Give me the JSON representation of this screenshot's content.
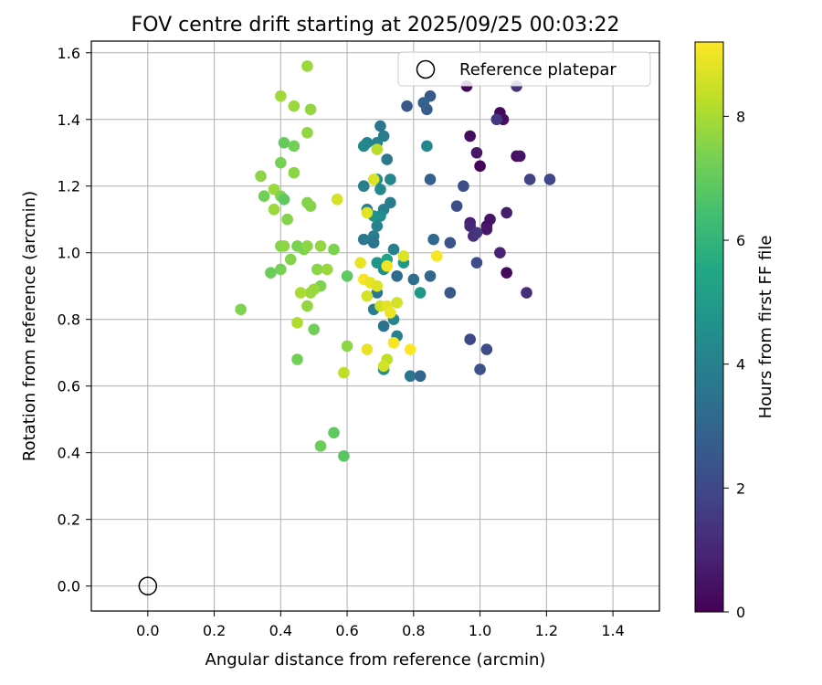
{
  "chart_data": {
    "type": "scatter",
    "title": "FOV centre drift starting at 2025/09/25 00:03:22",
    "xlabel": "Angular distance from reference (arcmin)",
    "ylabel": "Rotation from reference (arcmin)",
    "xlim": [
      -0.17,
      1.54
    ],
    "ylim": [
      -0.075,
      1.635
    ],
    "xticks": [
      "0.0",
      "0.2",
      "0.4",
      "0.6",
      "0.8",
      "1.0",
      "1.2",
      "1.4"
    ],
    "xtick_values": [
      0.0,
      0.2,
      0.4,
      0.6,
      0.8,
      1.0,
      1.2,
      1.4
    ],
    "yticks": [
      "0.0",
      "0.2",
      "0.4",
      "0.6",
      "0.8",
      "1.0",
      "1.2",
      "1.4",
      "1.6"
    ],
    "ytick_values": [
      0.0,
      0.2,
      0.4,
      0.6,
      0.8,
      1.0,
      1.2,
      1.4,
      1.6
    ],
    "grid": true,
    "legend": {
      "position": "top-right",
      "label": "Reference platepar"
    },
    "reference_point": {
      "x": 0.0,
      "y": 0.0
    },
    "colorbar": {
      "label": "Hours from first FF file",
      "min": 0,
      "max": 9.2,
      "ticks": [
        "0",
        "2",
        "4",
        "6",
        "8"
      ],
      "tick_values": [
        0,
        2,
        4,
        6,
        8
      ],
      "colormap": "viridis"
    },
    "points": [
      [
        0.96,
        1.5,
        0.1
      ],
      [
        1.11,
        1.5,
        1.3
      ],
      [
        1.06,
        1.42,
        0.2
      ],
      [
        1.07,
        1.4,
        0.4
      ],
      [
        1.05,
        1.4,
        1.5
      ],
      [
        0.97,
        1.35,
        0.3
      ],
      [
        0.99,
        1.3,
        0.6
      ],
      [
        1.11,
        1.29,
        0.3
      ],
      [
        1.12,
        1.29,
        0.5
      ],
      [
        1.0,
        1.26,
        0.1
      ],
      [
        1.15,
        1.22,
        1.8
      ],
      [
        1.21,
        1.22,
        1.9
      ],
      [
        1.08,
        1.12,
        0.7
      ],
      [
        1.03,
        1.1,
        0.5
      ],
      [
        1.02,
        1.08,
        0.4
      ],
      [
        1.02,
        1.07,
        0.6
      ],
      [
        0.97,
        1.09,
        0.8
      ],
      [
        0.97,
        1.08,
        1.0
      ],
      [
        0.98,
        1.05,
        1.2
      ],
      [
        0.99,
        1.06,
        1.4
      ],
      [
        1.06,
        1.0,
        0.9
      ],
      [
        1.08,
        0.94,
        0.2
      ],
      [
        0.99,
        0.97,
        2.1
      ],
      [
        1.14,
        0.88,
        1.2
      ],
      [
        0.97,
        0.74,
        2.0
      ],
      [
        1.02,
        0.71,
        2.1
      ],
      [
        1.0,
        0.65,
        2.3
      ],
      [
        0.95,
        1.2,
        2.1
      ],
      [
        0.93,
        1.14,
        2.2
      ],
      [
        0.91,
        1.03,
        2.4
      ],
      [
        0.91,
        0.88,
        2.5
      ],
      [
        0.85,
        1.47,
        2.6
      ],
      [
        0.84,
        1.43,
        2.7
      ],
      [
        0.83,
        1.45,
        2.9
      ],
      [
        0.78,
        1.44,
        2.5
      ],
      [
        0.85,
        1.22,
        2.8
      ],
      [
        0.86,
        1.04,
        3.1
      ],
      [
        0.85,
        0.93,
        3.0
      ],
      [
        0.8,
        0.92,
        3.3
      ],
      [
        0.75,
        0.93,
        3.2
      ],
      [
        0.79,
        0.63,
        3.6
      ],
      [
        0.82,
        0.63,
        3.0
      ],
      [
        0.84,
        1.32,
        4.2
      ],
      [
        0.7,
        1.38,
        3.6
      ],
      [
        0.71,
        1.35,
        3.8
      ],
      [
        0.69,
        1.33,
        4.0
      ],
      [
        0.66,
        1.33,
        4.1
      ],
      [
        0.65,
        1.32,
        4.3
      ],
      [
        0.72,
        1.28,
        3.7
      ],
      [
        0.73,
        1.22,
        4.2
      ],
      [
        0.69,
        1.22,
        4.5
      ],
      [
        0.7,
        1.19,
        4.3
      ],
      [
        0.65,
        1.2,
        4.0
      ],
      [
        0.73,
        1.15,
        3.8
      ],
      [
        0.71,
        1.13,
        4.0
      ],
      [
        0.7,
        1.11,
        4.4
      ],
      [
        0.66,
        1.13,
        3.9
      ],
      [
        0.68,
        1.11,
        4.6
      ],
      [
        0.69,
        1.08,
        4.1
      ],
      [
        0.68,
        1.05,
        3.9
      ],
      [
        0.65,
        1.04,
        3.7
      ],
      [
        0.68,
        1.03,
        3.5
      ],
      [
        0.74,
        1.01,
        4.0
      ],
      [
        0.77,
        0.97,
        4.9
      ],
      [
        0.69,
        0.97,
        4.7
      ],
      [
        0.71,
        0.95,
        4.5
      ],
      [
        0.69,
        0.88,
        3.6
      ],
      [
        0.68,
        0.83,
        3.9
      ],
      [
        0.71,
        0.78,
        3.5
      ],
      [
        0.74,
        0.8,
        4.2
      ],
      [
        0.75,
        0.75,
        4.0
      ],
      [
        0.71,
        0.65,
        4.4
      ],
      [
        0.82,
        0.88,
        4.8
      ],
      [
        0.72,
        0.98,
        5.3
      ],
      [
        0.4,
        1.47,
        7.9
      ],
      [
        0.48,
        1.56,
        7.8
      ],
      [
        0.44,
        1.44,
        7.8
      ],
      [
        0.49,
        1.43,
        7.7
      ],
      [
        0.41,
        1.33,
        7.0
      ],
      [
        0.44,
        1.32,
        7.2
      ],
      [
        0.48,
        1.36,
        7.7
      ],
      [
        0.4,
        1.27,
        7.3
      ],
      [
        0.34,
        1.23,
        7.6
      ],
      [
        0.44,
        1.24,
        7.6
      ],
      [
        0.35,
        1.17,
        7.2
      ],
      [
        0.38,
        1.19,
        7.8
      ],
      [
        0.4,
        1.17,
        7.4
      ],
      [
        0.41,
        1.16,
        6.9
      ],
      [
        0.38,
        1.13,
        7.8
      ],
      [
        0.48,
        1.15,
        7.5
      ],
      [
        0.49,
        1.14,
        7.5
      ],
      [
        0.42,
        1.1,
        7.5
      ],
      [
        0.4,
        1.02,
        7.5
      ],
      [
        0.41,
        1.02,
        7.6
      ],
      [
        0.45,
        1.02,
        7.3
      ],
      [
        0.47,
        1.01,
        7.4
      ],
      [
        0.48,
        1.02,
        7.6
      ],
      [
        0.52,
        1.02,
        7.7
      ],
      [
        0.56,
        1.01,
        7.4
      ],
      [
        0.43,
        0.98,
        7.5
      ],
      [
        0.4,
        0.95,
        7.3
      ],
      [
        0.37,
        0.94,
        7.1
      ],
      [
        0.51,
        0.95,
        7.6
      ],
      [
        0.54,
        0.95,
        7.8
      ],
      [
        0.6,
        0.93,
        6.9
      ],
      [
        0.52,
        0.9,
        7.4
      ],
      [
        0.5,
        0.89,
        7.8
      ],
      [
        0.49,
        0.88,
        7.8
      ],
      [
        0.46,
        0.88,
        8.0
      ],
      [
        0.48,
        0.84,
        7.7
      ],
      [
        0.45,
        0.79,
        8.1
      ],
      [
        0.5,
        0.77,
        7.2
      ],
      [
        0.28,
        0.83,
        7.4
      ],
      [
        0.6,
        0.72,
        7.6
      ],
      [
        0.45,
        0.68,
        7.2
      ],
      [
        0.59,
        0.64,
        8.3
      ],
      [
        0.56,
        0.46,
        6.9
      ],
      [
        0.52,
        0.42,
        7.1
      ],
      [
        0.59,
        0.39,
        6.8
      ],
      [
        0.68,
        1.22,
        8.7
      ],
      [
        0.69,
        1.31,
        8.2
      ],
      [
        0.57,
        1.16,
        8.6
      ],
      [
        0.66,
        1.12,
        8.8
      ],
      [
        0.64,
        0.97,
        8.9
      ],
      [
        0.72,
        0.96,
        9.0
      ],
      [
        0.87,
        0.99,
        9.1
      ],
      [
        0.77,
        0.99,
        8.7
      ],
      [
        0.65,
        0.92,
        9.1
      ],
      [
        0.67,
        0.91,
        8.9
      ],
      [
        0.69,
        0.9,
        8.7
      ],
      [
        0.66,
        0.87,
        8.6
      ],
      [
        0.7,
        0.84,
        8.5
      ],
      [
        0.72,
        0.84,
        8.8
      ],
      [
        0.73,
        0.82,
        9.0
      ],
      [
        0.75,
        0.85,
        8.6
      ],
      [
        0.66,
        0.71,
        8.9
      ],
      [
        0.74,
        0.73,
        9.1
      ],
      [
        0.79,
        0.71,
        9.2
      ],
      [
        0.72,
        0.68,
        8.3
      ],
      [
        0.71,
        0.66,
        8.6
      ]
    ]
  }
}
